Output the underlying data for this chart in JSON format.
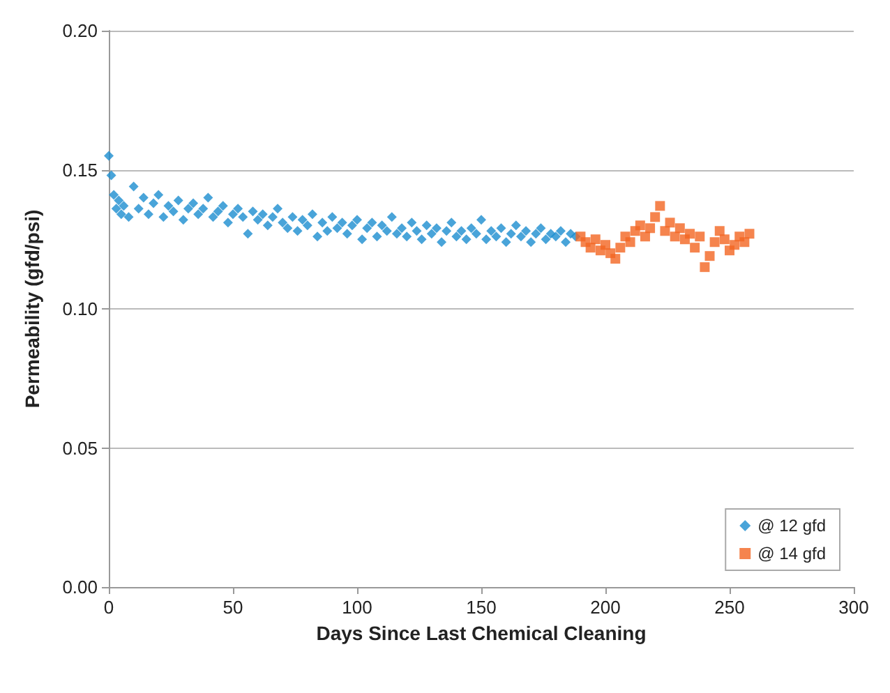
{
  "chart_data": {
    "type": "scatter",
    "xlabel": "Days Since Last Chemical Cleaning",
    "ylabel": "Permeability (gfd/psi)",
    "xlim": [
      0,
      300
    ],
    "xticks": [
      0,
      50,
      100,
      150,
      200,
      250,
      300
    ],
    "ylim": [
      0,
      0.2
    ],
    "yticks": [
      {
        "value": 0,
        "label": "0.00"
      },
      {
        "value": 0.05,
        "label": "0.05"
      },
      {
        "value": 0.1,
        "label": "0.10"
      },
      {
        "value": 0.15,
        "label": "0.15"
      },
      {
        "value": 0.2,
        "label": "0.20"
      }
    ],
    "grid": "y",
    "legend": "bottom right",
    "series": [
      {
        "name": "@ 12 gfd",
        "color": "#1b8dcf",
        "marker": "diamond",
        "x": [
          0,
          1,
          2,
          3,
          4,
          5,
          6,
          8,
          10,
          12,
          14,
          16,
          18,
          20,
          22,
          24,
          26,
          28,
          30,
          32,
          34,
          36,
          38,
          40,
          42,
          44,
          46,
          48,
          50,
          52,
          54,
          56,
          58,
          60,
          62,
          64,
          66,
          68,
          70,
          72,
          74,
          76,
          78,
          80,
          82,
          84,
          86,
          88,
          90,
          92,
          94,
          96,
          98,
          100,
          102,
          104,
          106,
          108,
          110,
          112,
          114,
          116,
          118,
          120,
          122,
          124,
          126,
          128,
          130,
          132,
          134,
          136,
          138,
          140,
          142,
          144,
          146,
          148,
          150,
          152,
          154,
          156,
          158,
          160,
          162,
          164,
          166,
          168,
          170,
          172,
          174,
          176,
          178,
          180,
          182,
          184,
          186,
          188
        ],
        "values": [
          0.155,
          0.148,
          0.141,
          0.136,
          0.139,
          0.134,
          0.137,
          0.133,
          0.144,
          0.136,
          0.14,
          0.134,
          0.138,
          0.141,
          0.133,
          0.137,
          0.135,
          0.139,
          0.132,
          0.136,
          0.138,
          0.134,
          0.136,
          0.14,
          0.133,
          0.135,
          0.137,
          0.131,
          0.134,
          0.136,
          0.133,
          0.127,
          0.135,
          0.132,
          0.134,
          0.13,
          0.133,
          0.136,
          0.131,
          0.129,
          0.133,
          0.128,
          0.132,
          0.13,
          0.134,
          0.126,
          0.131,
          0.128,
          0.133,
          0.129,
          0.131,
          0.127,
          0.13,
          0.132,
          0.125,
          0.129,
          0.131,
          0.126,
          0.13,
          0.128,
          0.133,
          0.127,
          0.129,
          0.126,
          0.131,
          0.128,
          0.125,
          0.13,
          0.127,
          0.129,
          0.124,
          0.128,
          0.131,
          0.126,
          0.128,
          0.125,
          0.129,
          0.127,
          0.132,
          0.125,
          0.128,
          0.126,
          0.129,
          0.124,
          0.127,
          0.13,
          0.126,
          0.128,
          0.124,
          0.127,
          0.129,
          0.125,
          0.127,
          0.126,
          0.128,
          0.124,
          0.127,
          0.126
        ]
      },
      {
        "name": "@ 14 gfd",
        "color": "#f26522",
        "marker": "square",
        "x": [
          190,
          192,
          194,
          196,
          198,
          200,
          202,
          204,
          206,
          208,
          210,
          212,
          214,
          216,
          218,
          220,
          222,
          224,
          226,
          228,
          230,
          232,
          234,
          236,
          238,
          240,
          242,
          244,
          246,
          248,
          250,
          252,
          254,
          256,
          258
        ],
        "values": [
          0.126,
          0.124,
          0.122,
          0.125,
          0.121,
          0.123,
          0.12,
          0.118,
          0.122,
          0.126,
          0.124,
          0.128,
          0.13,
          0.126,
          0.129,
          0.133,
          0.137,
          0.128,
          0.131,
          0.126,
          0.129,
          0.125,
          0.127,
          0.122,
          0.126,
          0.115,
          0.119,
          0.124,
          0.128,
          0.125,
          0.121,
          0.123,
          0.126,
          0.124,
          0.127
        ]
      }
    ]
  }
}
